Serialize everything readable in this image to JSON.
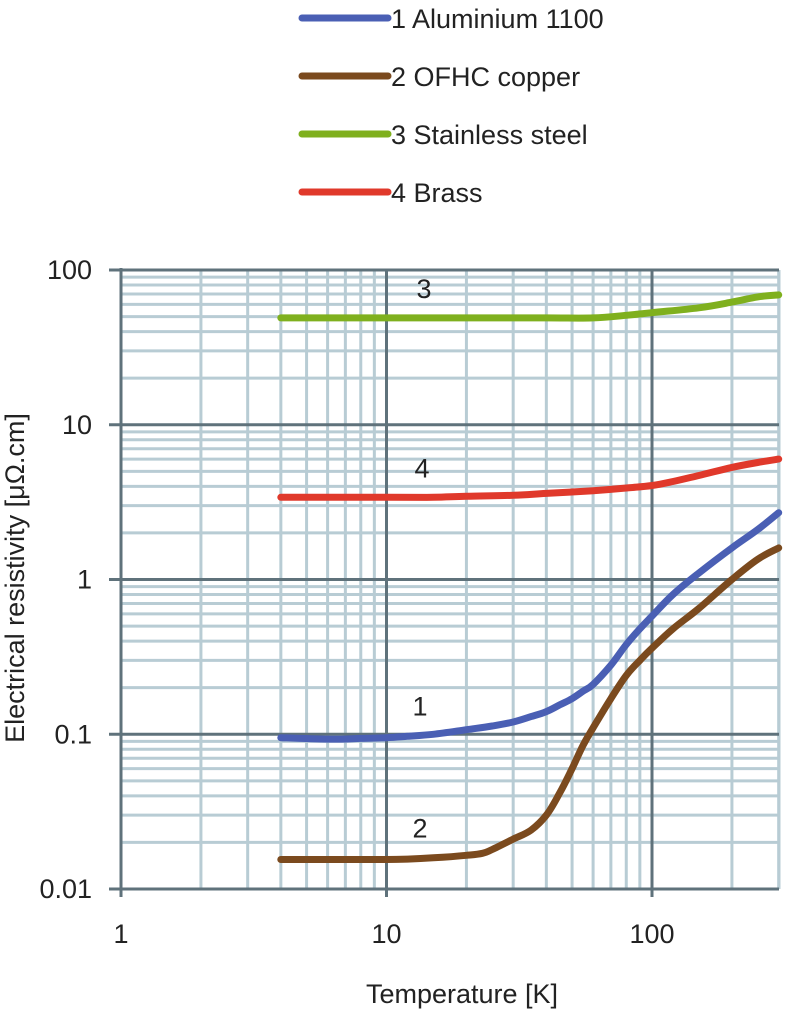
{
  "chart_data": {
    "type": "line",
    "xlabel": "Temperature [K]",
    "ylabel": "Electrical resistivity [μΩ.cm]",
    "x_scale": "log",
    "y_scale": "log",
    "xlim": [
      1,
      300
    ],
    "ylim": [
      0.01,
      100
    ],
    "x_ticks": [
      1,
      10,
      100
    ],
    "x_tick_labels": [
      "1",
      "10",
      "100"
    ],
    "y_ticks": [
      0.01,
      0.1,
      1,
      10,
      100
    ],
    "y_tick_labels": [
      "0.01",
      "0.1",
      "1",
      "10",
      "100"
    ],
    "grid": true,
    "legend_position": "top",
    "series": [
      {
        "name": "1 Aluminium 1100",
        "label": "1",
        "color": "#4a5fb4",
        "x": [
          4,
          6,
          8,
          10,
          12,
          15,
          20,
          25,
          30,
          35,
          40,
          45,
          50,
          55,
          60,
          70,
          80,
          90,
          100,
          120,
          150,
          200,
          250,
          300
        ],
        "y": [
          0.095,
          0.093,
          0.094,
          0.095,
          0.097,
          0.1,
          0.107,
          0.113,
          0.12,
          0.13,
          0.14,
          0.155,
          0.17,
          0.19,
          0.21,
          0.28,
          0.38,
          0.48,
          0.58,
          0.8,
          1.1,
          1.6,
          2.1,
          2.7
        ]
      },
      {
        "name": "2 OFHC copper",
        "label": "2",
        "color": "#7b4a1e",
        "x": [
          4,
          6,
          8,
          10,
          12,
          15,
          20,
          23,
          25,
          30,
          35,
          40,
          45,
          50,
          55,
          60,
          70,
          80,
          90,
          100,
          120,
          150,
          200,
          250,
          300
        ],
        "y": [
          0.0155,
          0.0155,
          0.0155,
          0.0155,
          0.0156,
          0.0159,
          0.0165,
          0.017,
          0.018,
          0.021,
          0.024,
          0.03,
          0.042,
          0.06,
          0.085,
          0.11,
          0.17,
          0.24,
          0.3,
          0.36,
          0.48,
          0.65,
          1.0,
          1.35,
          1.6
        ]
      },
      {
        "name": "3 Stainless steel",
        "label": "3",
        "color": "#7fb01e",
        "x": [
          4,
          10,
          20,
          40,
          60,
          80,
          100,
          150,
          200,
          250,
          300
        ],
        "y": [
          49,
          49,
          49,
          49,
          49,
          51,
          53,
          57,
          62,
          67,
          69
        ]
      },
      {
        "name": "4 Brass",
        "label": "4",
        "color": "#e0392b",
        "x": [
          4,
          6,
          10,
          15,
          20,
          30,
          40,
          60,
          80,
          100,
          120,
          150,
          200,
          250,
          300
        ],
        "y": [
          3.4,
          3.4,
          3.4,
          3.4,
          3.45,
          3.5,
          3.6,
          3.75,
          3.9,
          4.05,
          4.3,
          4.7,
          5.3,
          5.7,
          6.0
        ]
      }
    ]
  }
}
